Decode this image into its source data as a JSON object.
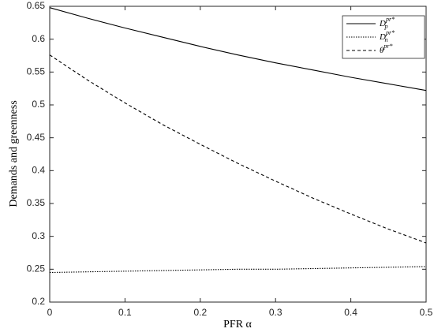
{
  "chart_data": {
    "type": "line",
    "xlabel": "PFR α",
    "ylabel": "Demands and greenness",
    "x": [
      0,
      0.05,
      0.1,
      0.15,
      0.2,
      0.25,
      0.3,
      0.35,
      0.4,
      0.45,
      0.5
    ],
    "series": [
      {
        "name": "D",
        "name_sub": "p",
        "name_sup": "pr*",
        "color": "#000000",
        "dash": "solid",
        "values": [
          0.648,
          0.632,
          0.617,
          0.603,
          0.589,
          0.576,
          0.564,
          0.553,
          0.542,
          0.532,
          0.522
        ]
      },
      {
        "name": "D",
        "name_sub": "n",
        "name_sup": "pr*",
        "color": "#000000",
        "dash": "dotted",
        "values": [
          0.245,
          0.246,
          0.247,
          0.248,
          0.249,
          0.25,
          0.25,
          0.251,
          0.252,
          0.253,
          0.254
        ]
      },
      {
        "name": "θ",
        "name_sup": "pr*",
        "color": "#000000",
        "dash": "dashed",
        "values": [
          0.576,
          0.538,
          0.503,
          0.47,
          0.44,
          0.411,
          0.384,
          0.358,
          0.334,
          0.311,
          0.29
        ]
      }
    ],
    "xlim": [
      0,
      0.5
    ],
    "xticks": [
      0,
      0.1,
      0.2,
      0.3,
      0.4,
      0.5
    ],
    "ylim": [
      0.2,
      0.65
    ],
    "yticks": [
      0.2,
      0.25,
      0.3,
      0.35,
      0.4,
      0.45,
      0.5,
      0.55,
      0.6,
      0.65
    ],
    "grid": false,
    "legend": "northeast"
  }
}
